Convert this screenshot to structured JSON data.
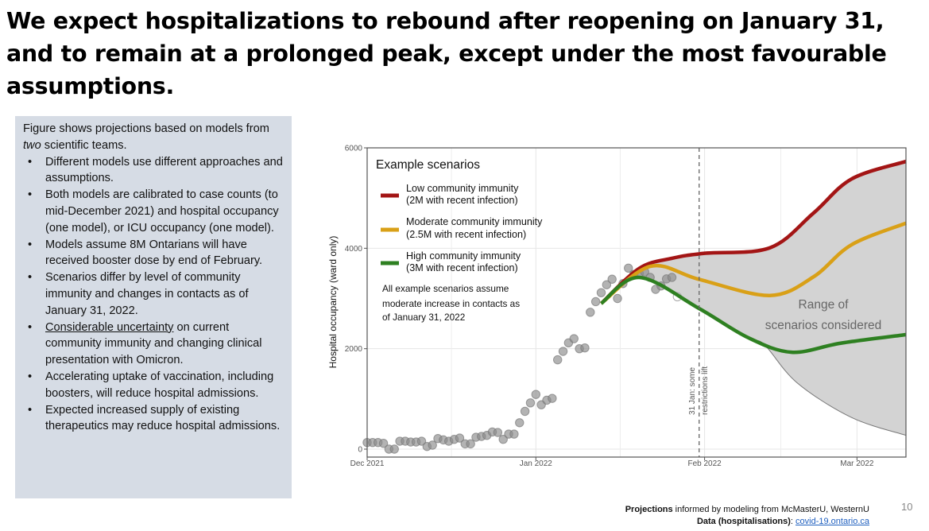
{
  "slide": {
    "title": "We expect hospitalizations to rebound after reopening on January 31, and to remain at a prolonged peak, except under the most favourable assumptions.",
    "page_number": "10"
  },
  "sidebar": {
    "intro_1": "Figure shows projections based on models from ",
    "intro_em": "two",
    "intro_2": " scientific teams.",
    "bullets": [
      {
        "text": "Different models use different approaches and assumptions."
      },
      {
        "text": "Both models are calibrated to case counts (to mid-December 2021) and hospital occupancy (one model), or ICU occupancy (one model)."
      },
      {
        "text": "Models assume 8M Ontarians will have received booster dose by end of February."
      },
      {
        "text": "Scenarios differ by level of community immunity and changes in contacts as of January 31, 2022."
      },
      {
        "underlined": "Considerable uncertainty",
        "text": " on current community immunity and changing clinical presentation with Omicron."
      },
      {
        "text": "Accelerating uptake of vaccination, including boosters, will reduce hospital admissions."
      },
      {
        "text": "Expected increased supply of existing therapeutics may reduce hospital admissions."
      }
    ]
  },
  "footer": {
    "projections_bold": "Projections",
    "projections_rest": " informed by modeling from McMasterU, WesternU",
    "data_bold": "Data (hospitalisations)",
    "data_sep": ": ",
    "data_link": "covid-19.ontario.ca"
  },
  "chart_data": {
    "type": "line",
    "title": "",
    "xlabel": "",
    "ylabel": "Hospital occupancy (ward only)",
    "xlim": [
      "2021-12-01",
      "2022-03-10"
    ],
    "ylim": [
      0,
      6000
    ],
    "x_ticks": [
      {
        "date": "2021-12-01",
        "label": "Dec 2021"
      },
      {
        "date": "2022-01-01",
        "label": "Jan 2022"
      },
      {
        "date": "2022-02-01",
        "label": "Feb 2022"
      },
      {
        "date": "2022-03-01",
        "label": "Mar 2022"
      }
    ],
    "y_ticks": [
      0,
      2000,
      4000,
      6000
    ],
    "grid": true,
    "legend": {
      "title": "Example scenarios",
      "placement": "top-left",
      "note": [
        "All example scenarios assume",
        "moderate increase in contacts as",
        "of January 31, 2022"
      ]
    },
    "annotations": {
      "vline": {
        "date": "2022-01-31",
        "label_1": "31 Jan: some",
        "label_2": "restrictions lift"
      },
      "range_label_1": "Range of",
      "range_label_2": "scenarios considered"
    },
    "observed": {
      "color": "#999999",
      "points": [
        [
          "2021-12-01",
          132
        ],
        [
          "2021-12-02",
          132
        ],
        [
          "2021-12-03",
          132
        ],
        [
          "2021-12-04",
          116
        ],
        [
          "2021-12-05",
          0
        ],
        [
          "2021-12-06",
          0
        ],
        [
          "2021-12-07",
          158
        ],
        [
          "2021-12-08",
          158
        ],
        [
          "2021-12-09",
          142
        ],
        [
          "2021-12-10",
          142
        ],
        [
          "2021-12-11",
          158
        ],
        [
          "2021-12-12",
          53
        ],
        [
          "2021-12-13",
          79
        ],
        [
          "2021-12-14",
          210
        ],
        [
          "2021-12-15",
          184
        ],
        [
          "2021-12-16",
          158
        ],
        [
          "2021-12-17",
          195
        ],
        [
          "2021-12-18",
          221
        ],
        [
          "2021-12-19",
          105
        ],
        [
          "2021-12-20",
          105
        ],
        [
          "2021-12-21",
          237
        ],
        [
          "2021-12-22",
          253
        ],
        [
          "2021-12-23",
          274
        ],
        [
          "2021-12-24",
          342
        ],
        [
          "2021-12-25",
          332
        ],
        [
          "2021-12-26",
          195
        ],
        [
          "2021-12-27",
          300
        ],
        [
          "2021-12-28",
          300
        ],
        [
          "2021-12-29",
          526
        ],
        [
          "2021-12-30",
          753
        ],
        [
          "2021-12-31",
          921
        ],
        [
          "2022-01-01",
          1089
        ],
        [
          "2022-01-02",
          884
        ],
        [
          "2022-01-03",
          974
        ],
        [
          "2022-01-04",
          1011
        ],
        [
          "2022-01-05",
          1779
        ],
        [
          "2022-01-06",
          1947
        ],
        [
          "2022-01-07",
          2116
        ],
        [
          "2022-01-08",
          2200
        ],
        [
          "2022-01-09",
          2000
        ],
        [
          "2022-01-10",
          2016
        ],
        [
          "2022-01-11",
          2726
        ],
        [
          "2022-01-12",
          2937
        ],
        [
          "2022-01-13",
          3116
        ],
        [
          "2022-01-14",
          3274
        ],
        [
          "2022-01-15",
          3384
        ],
        [
          "2022-01-16",
          3000
        ],
        [
          "2022-01-17",
          3297
        ],
        [
          "2022-01-18",
          3605
        ],
        [
          "2022-01-19",
          3480
        ],
        [
          "2022-01-20",
          3500
        ],
        [
          "2022-01-21",
          3530
        ],
        [
          "2022-01-22",
          3420
        ],
        [
          "2022-01-23",
          3182
        ],
        [
          "2022-01-24",
          3250
        ],
        [
          "2022-01-25",
          3390
        ],
        [
          "2022-01-26",
          3420
        ]
      ],
      "hollow_points": [
        [
          "2022-01-27",
          3035
        ]
      ]
    },
    "range_band": {
      "color": "#d3d3d3",
      "upper": [
        [
          "2022-01-13",
          2900
        ],
        [
          "2022-01-20",
          3600
        ],
        [
          "2022-01-26",
          3800
        ],
        [
          "2022-02-01",
          3900
        ],
        [
          "2022-02-13",
          4010
        ],
        [
          "2022-02-21",
          4700
        ],
        [
          "2022-02-28",
          5380
        ],
        [
          "2022-03-10",
          5730
        ]
      ],
      "lower": [
        [
          "2022-01-13",
          2900
        ],
        [
          "2022-01-20",
          3420
        ],
        [
          "2022-01-31",
          2800
        ],
        [
          "2022-02-09",
          2220
        ],
        [
          "2022-02-12",
          2080
        ],
        [
          "2022-02-18",
          1320
        ],
        [
          "2022-02-28",
          630
        ],
        [
          "2022-03-10",
          275
        ]
      ]
    },
    "series": [
      {
        "name": "Low community immunity",
        "sub": "(2M with recent infection)",
        "color": "#a31515",
        "points": [
          [
            "2022-01-13",
            2900
          ],
          [
            "2022-01-20",
            3600
          ],
          [
            "2022-01-26",
            3800
          ],
          [
            "2022-02-01",
            3900
          ],
          [
            "2022-02-13",
            4010
          ],
          [
            "2022-02-21",
            4700
          ],
          [
            "2022-02-28",
            5380
          ],
          [
            "2022-03-10",
            5730
          ]
        ]
      },
      {
        "name": "Moderate community immunity",
        "sub": "(2.5M with recent infection)",
        "color": "#d9a017",
        "points": [
          [
            "2022-01-13",
            2900
          ],
          [
            "2022-01-22",
            3640
          ],
          [
            "2022-01-31",
            3380
          ],
          [
            "2022-02-13",
            3060
          ],
          [
            "2022-02-21",
            3430
          ],
          [
            "2022-02-28",
            4070
          ],
          [
            "2022-03-10",
            4500
          ]
        ]
      },
      {
        "name": "High community immunity",
        "sub": "(3M with recent infection)",
        "color": "#2e8021",
        "points": [
          [
            "2022-01-13",
            2900
          ],
          [
            "2022-01-20",
            3420
          ],
          [
            "2022-01-31",
            2800
          ],
          [
            "2022-02-09",
            2220
          ],
          [
            "2022-02-17",
            1930
          ],
          [
            "2022-02-26",
            2110
          ],
          [
            "2022-03-10",
            2280
          ]
        ]
      }
    ]
  }
}
